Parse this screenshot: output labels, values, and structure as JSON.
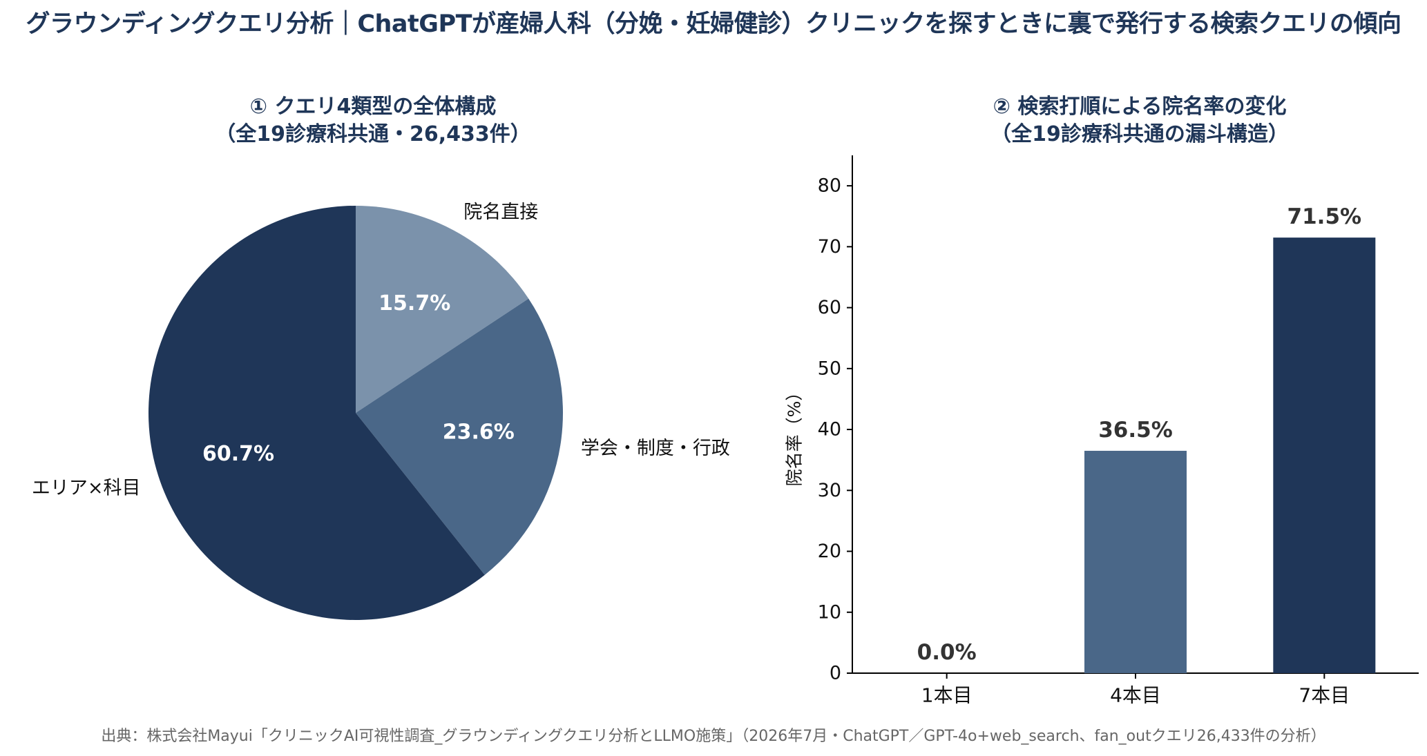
{
  "title": "グラウンディングクエリ分析｜ChatGPTが産婦人科（分娩・妊婦健診）クリニックを探すときに裏で発行する検索クエリの傾向",
  "source": "出典：株式会社Mayui「クリニックAI可視性調査_グラウンディングクエリ分析とLLMO施策」（2026年7月・ChatGPT／GPT-4o+web_search、fan_outクエリ26,433件の分析）",
  "chart_data": [
    {
      "type": "pie",
      "title_lines": [
        "① クエリ4類型の全体構成",
        "（全19診療科共通・26,433件）"
      ],
      "slices": [
        {
          "label": "院名直接",
          "value": 15.7,
          "value_label": "15.7%",
          "color": "#7b92ab"
        },
        {
          "label": "学会・制度・行政",
          "value": 23.6,
          "value_label": "23.6%",
          "color": "#4a6788"
        },
        {
          "label": "エリア×科目",
          "value": 60.7,
          "value_label": "60.7%",
          "color": "#1f3658"
        }
      ],
      "start": "12 o'clock",
      "direction": "clockwise"
    },
    {
      "type": "bar",
      "title_lines": [
        "② 検索打順による院名率の変化",
        "（全19診療科共通の漏斗構造）"
      ],
      "categories": [
        "1本目",
        "4本目",
        "7本目"
      ],
      "values": [
        0.0,
        36.5,
        71.5
      ],
      "value_labels": [
        "0.0%",
        "36.5%",
        "71.5%"
      ],
      "colors": [
        "#9db1c8",
        "#4a6788",
        "#1f3658"
      ],
      "ylabel": "院名率（%）",
      "ylim": [
        0,
        85
      ],
      "yticks": [
        0,
        10,
        20,
        30,
        40,
        50,
        60,
        70,
        80
      ],
      "grid": false
    }
  ]
}
